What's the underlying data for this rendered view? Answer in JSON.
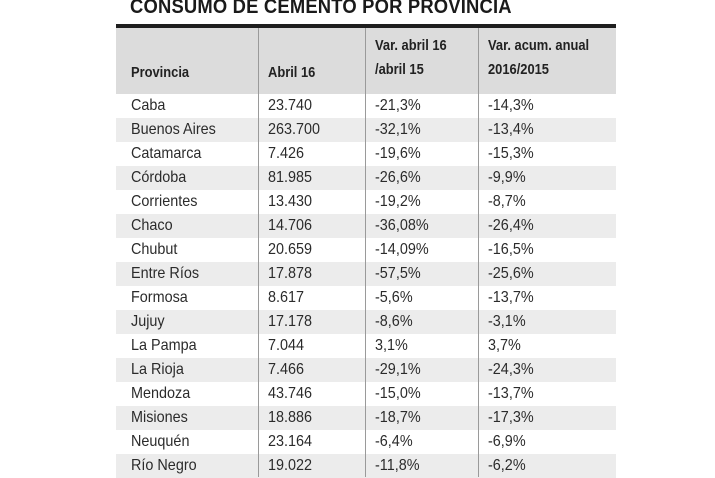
{
  "title": "CONSUMO DE CEMENTO POR PROVINCIA",
  "header": {
    "provincia": "Provincia",
    "abril": "Abril 16",
    "var_line1": "Var. abril 16",
    "var_line2": "/abril 15",
    "acum_line1": "Var. acum. anual",
    "acum_line2": "2016/2015"
  },
  "rows": [
    {
      "provincia": "Caba",
      "abril": "23.740",
      "var": "-21,3%",
      "acum": "-14,3%"
    },
    {
      "provincia": "Buenos Aires",
      "abril": "263.700",
      "var": "-32,1%",
      "acum": "-13,4%"
    },
    {
      "provincia": "Catamarca",
      "abril": "7.426",
      "var": "-19,6%",
      "acum": "-15,3%"
    },
    {
      "provincia": "Córdoba",
      "abril": "81.985",
      "var": "-26,6%",
      "acum": "-9,9%"
    },
    {
      "provincia": "Corrientes",
      "abril": "13.430",
      "var": "-19,2%",
      "acum": "-8,7%"
    },
    {
      "provincia": "Chaco",
      "abril": "14.706",
      "var": "-36,08%",
      "acum": "-26,4%"
    },
    {
      "provincia": "Chubut",
      "abril": "20.659",
      "var": "-14,09%",
      "acum": "-16,5%"
    },
    {
      "provincia": "Entre Ríos",
      "abril": "17.878",
      "var": "-57,5%",
      "acum": "-25,6%"
    },
    {
      "provincia": "Formosa",
      "abril": "8.617",
      "var": "-5,6%",
      "acum": "-13,7%"
    },
    {
      "provincia": "Jujuy",
      "abril": "17.178",
      "var": "-8,6%",
      "acum": "-3,1%"
    },
    {
      "provincia": "La Pampa",
      "abril": "7.044",
      "var": "3,1%",
      "acum": "3,7%"
    },
    {
      "provincia": "La Rioja",
      "abril": "7.466",
      "var": "-29,1%",
      "acum": "-24,3%"
    },
    {
      "provincia": "Mendoza",
      "abril": "43.746",
      "var": "-15,0%",
      "acum": "-13,7%"
    },
    {
      "provincia": "Misiones",
      "abril": "18.886",
      "var": "-18,7%",
      "acum": "-17,3%"
    },
    {
      "provincia": "Neuquén",
      "abril": "23.164",
      "var": "-6,4%",
      "acum": "-6,9%"
    },
    {
      "provincia": "Río Negro",
      "abril": "19.022",
      "var": "-11,8%",
      "acum": "-6,2%"
    }
  ],
  "colors": {
    "header_bg": "#dcdcdc",
    "row_alt_bg": "#ececec",
    "rule": "#1e1e1e"
  }
}
